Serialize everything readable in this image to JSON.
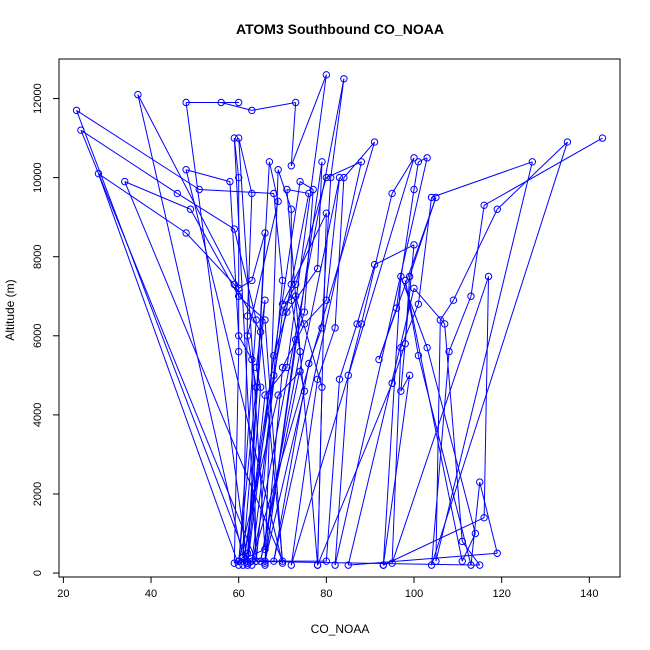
{
  "chart_data": {
    "type": "scatter",
    "title": "ATOM3 Southbound CO_NOAA",
    "xlabel": "CO_NOAA",
    "ylabel": "Altitude (m)",
    "xlim": [
      19,
      147
    ],
    "ylim": [
      -100,
      13000
    ],
    "xticks": [
      "20",
      "40",
      "60",
      "80",
      "100",
      "120",
      "140"
    ],
    "yticks": [
      "0",
      "2000",
      "4000",
      "6000",
      "8000",
      "10000",
      "12000"
    ],
    "grid": false,
    "legend": "none",
    "colors": {
      "series": "#0000ff",
      "axis": "#000000"
    },
    "series": [
      {
        "marker": "open-circle",
        "connect": "line",
        "points": [
          [
            143,
            11000
          ],
          [
            116,
            9300
          ],
          [
            113,
            7000
          ],
          [
            108,
            5600
          ],
          [
            104,
            200
          ],
          [
            135,
            10900
          ],
          [
            119,
            9200
          ],
          [
            109,
            6900
          ],
          [
            106,
            6400
          ],
          [
            105,
            300
          ],
          [
            127,
            10400
          ],
          [
            104,
            9500
          ],
          [
            101,
            6800
          ],
          [
            97,
            5700
          ],
          [
            95,
            250
          ],
          [
            117,
            7500
          ],
          [
            116,
            1400
          ],
          [
            93,
            200
          ],
          [
            99,
            5000
          ],
          [
            97,
            4600
          ],
          [
            100,
            8300
          ],
          [
            91,
            7800
          ],
          [
            87,
            6300
          ],
          [
            83,
            4900
          ],
          [
            80,
            300
          ],
          [
            66,
            300
          ],
          [
            75,
            4600
          ],
          [
            74,
            5100
          ],
          [
            69,
            4500
          ],
          [
            60,
            300
          ],
          [
            62,
            500
          ],
          [
            65,
            4700
          ],
          [
            64,
            5200
          ],
          [
            66,
            6900
          ],
          [
            61,
            400
          ],
          [
            37,
            12100
          ],
          [
            60,
            7200
          ],
          [
            63,
            7400
          ],
          [
            66,
            8600
          ],
          [
            62,
            250
          ],
          [
            48,
            11900
          ],
          [
            60,
            11900
          ],
          [
            56,
            11900
          ],
          [
            63,
            11700
          ],
          [
            73,
            11900
          ],
          [
            72,
            10300
          ],
          [
            80,
            12600
          ],
          [
            71,
            5200
          ],
          [
            66,
            4500
          ],
          [
            62,
            300
          ],
          [
            23,
            11700
          ],
          [
            51,
            9700
          ],
          [
            68,
            9600
          ],
          [
            70,
            7400
          ],
          [
            64,
            300
          ],
          [
            24,
            11200
          ],
          [
            46,
            9600
          ],
          [
            59,
            8700
          ],
          [
            64,
            6400
          ],
          [
            60,
            200
          ],
          [
            28,
            10100
          ],
          [
            48,
            8600
          ],
          [
            59,
            7300
          ],
          [
            65,
            6100
          ],
          [
            70,
            300
          ],
          [
            34,
            9900
          ],
          [
            49,
            9200
          ],
          [
            60,
            7000
          ],
          [
            66,
            6400
          ],
          [
            70,
            250
          ],
          [
            48,
            10200
          ],
          [
            58,
            9900
          ],
          [
            60,
            6000
          ],
          [
            63,
            5400
          ],
          [
            64,
            300
          ],
          [
            59,
            11000
          ],
          [
            60,
            10000
          ],
          [
            60,
            5600
          ],
          [
            59,
            250
          ],
          [
            66,
            600
          ],
          [
            60,
            11000
          ],
          [
            63,
            9600
          ],
          [
            62,
            6500
          ],
          [
            61,
            400
          ],
          [
            63,
            200
          ],
          [
            84,
            12500
          ],
          [
            81,
            10000
          ],
          [
            79,
            6200
          ],
          [
            76,
            5300
          ],
          [
            68,
            300
          ],
          [
            88,
            10400
          ],
          [
            80,
            10000
          ],
          [
            73,
            7300
          ],
          [
            70,
            6600
          ],
          [
            63,
            300
          ],
          [
            91,
            10900
          ],
          [
            84,
            10000
          ],
          [
            82,
            6200
          ],
          [
            78,
            4900
          ],
          [
            72,
            200
          ],
          [
            100,
            10500
          ],
          [
            95,
            9600
          ],
          [
            88,
            6300
          ],
          [
            85,
            5000
          ],
          [
            82,
            200
          ],
          [
            103,
            10500
          ],
          [
            101,
            10400
          ],
          [
            100,
            9700
          ],
          [
            96,
            6700
          ],
          [
            92,
            5400
          ],
          [
            105,
            9500
          ],
          [
            99,
            7500
          ],
          [
            98,
            5800
          ],
          [
            95,
            4800
          ],
          [
            78,
            200
          ],
          [
            80,
            9100
          ],
          [
            70,
            6800
          ],
          [
            73,
            7000
          ],
          [
            79,
            4700
          ],
          [
            78,
            200
          ],
          [
            71,
            9700
          ],
          [
            76,
            9600
          ],
          [
            72,
            7300
          ],
          [
            68,
            5000
          ],
          [
            61,
            200
          ],
          [
            74,
            9900
          ],
          [
            77,
            9700
          ],
          [
            75,
            6600
          ],
          [
            73,
            5900
          ],
          [
            66,
            200
          ],
          [
            69,
            10200
          ],
          [
            72,
            9200
          ],
          [
            72,
            6900
          ],
          [
            74,
            5600
          ],
          [
            65,
            300
          ],
          [
            83,
            10000
          ],
          [
            80,
            6900
          ],
          [
            75,
            6300
          ],
          [
            70,
            5200
          ],
          [
            66,
            250
          ],
          [
            79,
            10400
          ],
          [
            78,
            7700
          ],
          [
            71,
            6600
          ],
          [
            68,
            5500
          ],
          [
            62,
            200
          ],
          [
            67,
            10400
          ],
          [
            69,
            9400
          ],
          [
            62,
            6000
          ],
          [
            64,
            4700
          ],
          [
            60,
            300
          ],
          [
            115,
            200
          ],
          [
            111,
            800
          ],
          [
            107,
            6300
          ],
          [
            100,
            7200
          ],
          [
            85,
            200
          ],
          [
            119,
            500
          ],
          [
            115,
            2300
          ],
          [
            113,
            200
          ],
          [
            101,
            5500
          ],
          [
            98,
            7400
          ],
          [
            111,
            300
          ],
          [
            114,
            1000
          ],
          [
            103,
            5700
          ],
          [
            97,
            7500
          ],
          [
            93,
            200
          ]
        ]
      }
    ]
  }
}
